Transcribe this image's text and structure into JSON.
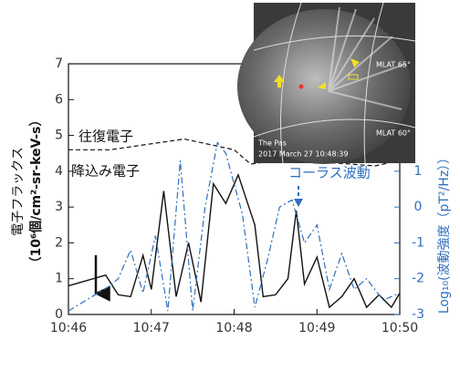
{
  "chart_data": {
    "type": "line",
    "y_label_lines": [
      "電子フラックス",
      "（10⁶個/cm²-sr-keV-s）"
    ],
    "y2_label": "Log₁₀(波動強度（pT²/Hz））",
    "annotations": [
      "往復電子",
      "降込み電子",
      "コーラス波動"
    ],
    "xlim": [
      46,
      50
    ],
    "xticks": [
      {
        "value": 46,
        "label": "10:46"
      },
      {
        "value": 47,
        "label": "10:47"
      },
      {
        "value": 48,
        "label": "10:48"
      },
      {
        "value": 49,
        "label": "10:49"
      },
      {
        "value": 50,
        "label": "10:50"
      }
    ],
    "ylim": [
      0,
      7
    ],
    "yticks": [
      0,
      1,
      2,
      3,
      4,
      5,
      6,
      7
    ],
    "y2lim": [
      -3,
      4
    ],
    "y2ticks": [
      -3,
      -2,
      -1,
      0,
      1
    ],
    "series": [
      {
        "color": "#111111",
        "style": "solid",
        "axis": "y",
        "x": [
          46.0,
          46.45,
          46.6,
          46.75,
          46.9,
          47.0,
          47.15,
          47.3,
          47.45,
          47.6,
          47.75,
          47.9,
          48.05,
          48.25,
          48.35,
          48.5,
          48.65,
          48.75,
          48.85,
          49.0,
          49.15,
          49.3,
          49.45,
          49.6,
          49.75,
          49.9,
          50.0
        ],
        "values": [
          0.8,
          1.1,
          0.55,
          0.5,
          1.65,
          0.7,
          3.45,
          0.5,
          2.0,
          0.35,
          3.65,
          3.1,
          3.9,
          2.5,
          0.5,
          0.55,
          1.0,
          2.9,
          0.85,
          1.6,
          0.2,
          0.5,
          1.0,
          0.2,
          0.55,
          0.2,
          0.6
        ]
      },
      {
        "color": "#111111",
        "style": "dashed",
        "axis": "y",
        "x": [
          46.0,
          46.5,
          46.8,
          47.1,
          47.4,
          47.7,
          48.0,
          48.2,
          48.5,
          48.8,
          49.1,
          49.4,
          49.7,
          50.0
        ],
        "values": [
          4.6,
          4.6,
          4.7,
          4.8,
          4.9,
          4.75,
          4.6,
          4.2,
          4.3,
          4.25,
          4.25,
          4.2,
          4.15,
          4.3
        ]
      },
      {
        "color": "#2f6fbf",
        "style": "dashdot",
        "axis": "y2",
        "x": [
          46.0,
          46.5,
          46.6,
          46.75,
          46.9,
          47.05,
          47.2,
          47.35,
          47.5,
          47.65,
          47.8,
          47.9,
          48.1,
          48.25,
          48.4,
          48.55,
          48.7,
          48.85,
          49.0,
          49.15,
          49.3,
          49.45,
          49.6,
          49.8,
          50.0
        ],
        "values": [
          -2.9,
          -2.2,
          -2.0,
          -1.2,
          -2.4,
          -0.8,
          -2.9,
          1.3,
          -2.9,
          0.0,
          1.8,
          1.5,
          -0.2,
          -2.8,
          -1.5,
          0.0,
          0.2,
          -1.0,
          -0.5,
          -2.3,
          -1.3,
          -2.3,
          -2.0,
          -2.6,
          -2.4
        ]
      }
    ]
  },
  "inset": {
    "labels": [
      "MLAT 65°",
      "MLAT 60°",
      "The Pas",
      "2017 March 27 10:48:39"
    ]
  }
}
